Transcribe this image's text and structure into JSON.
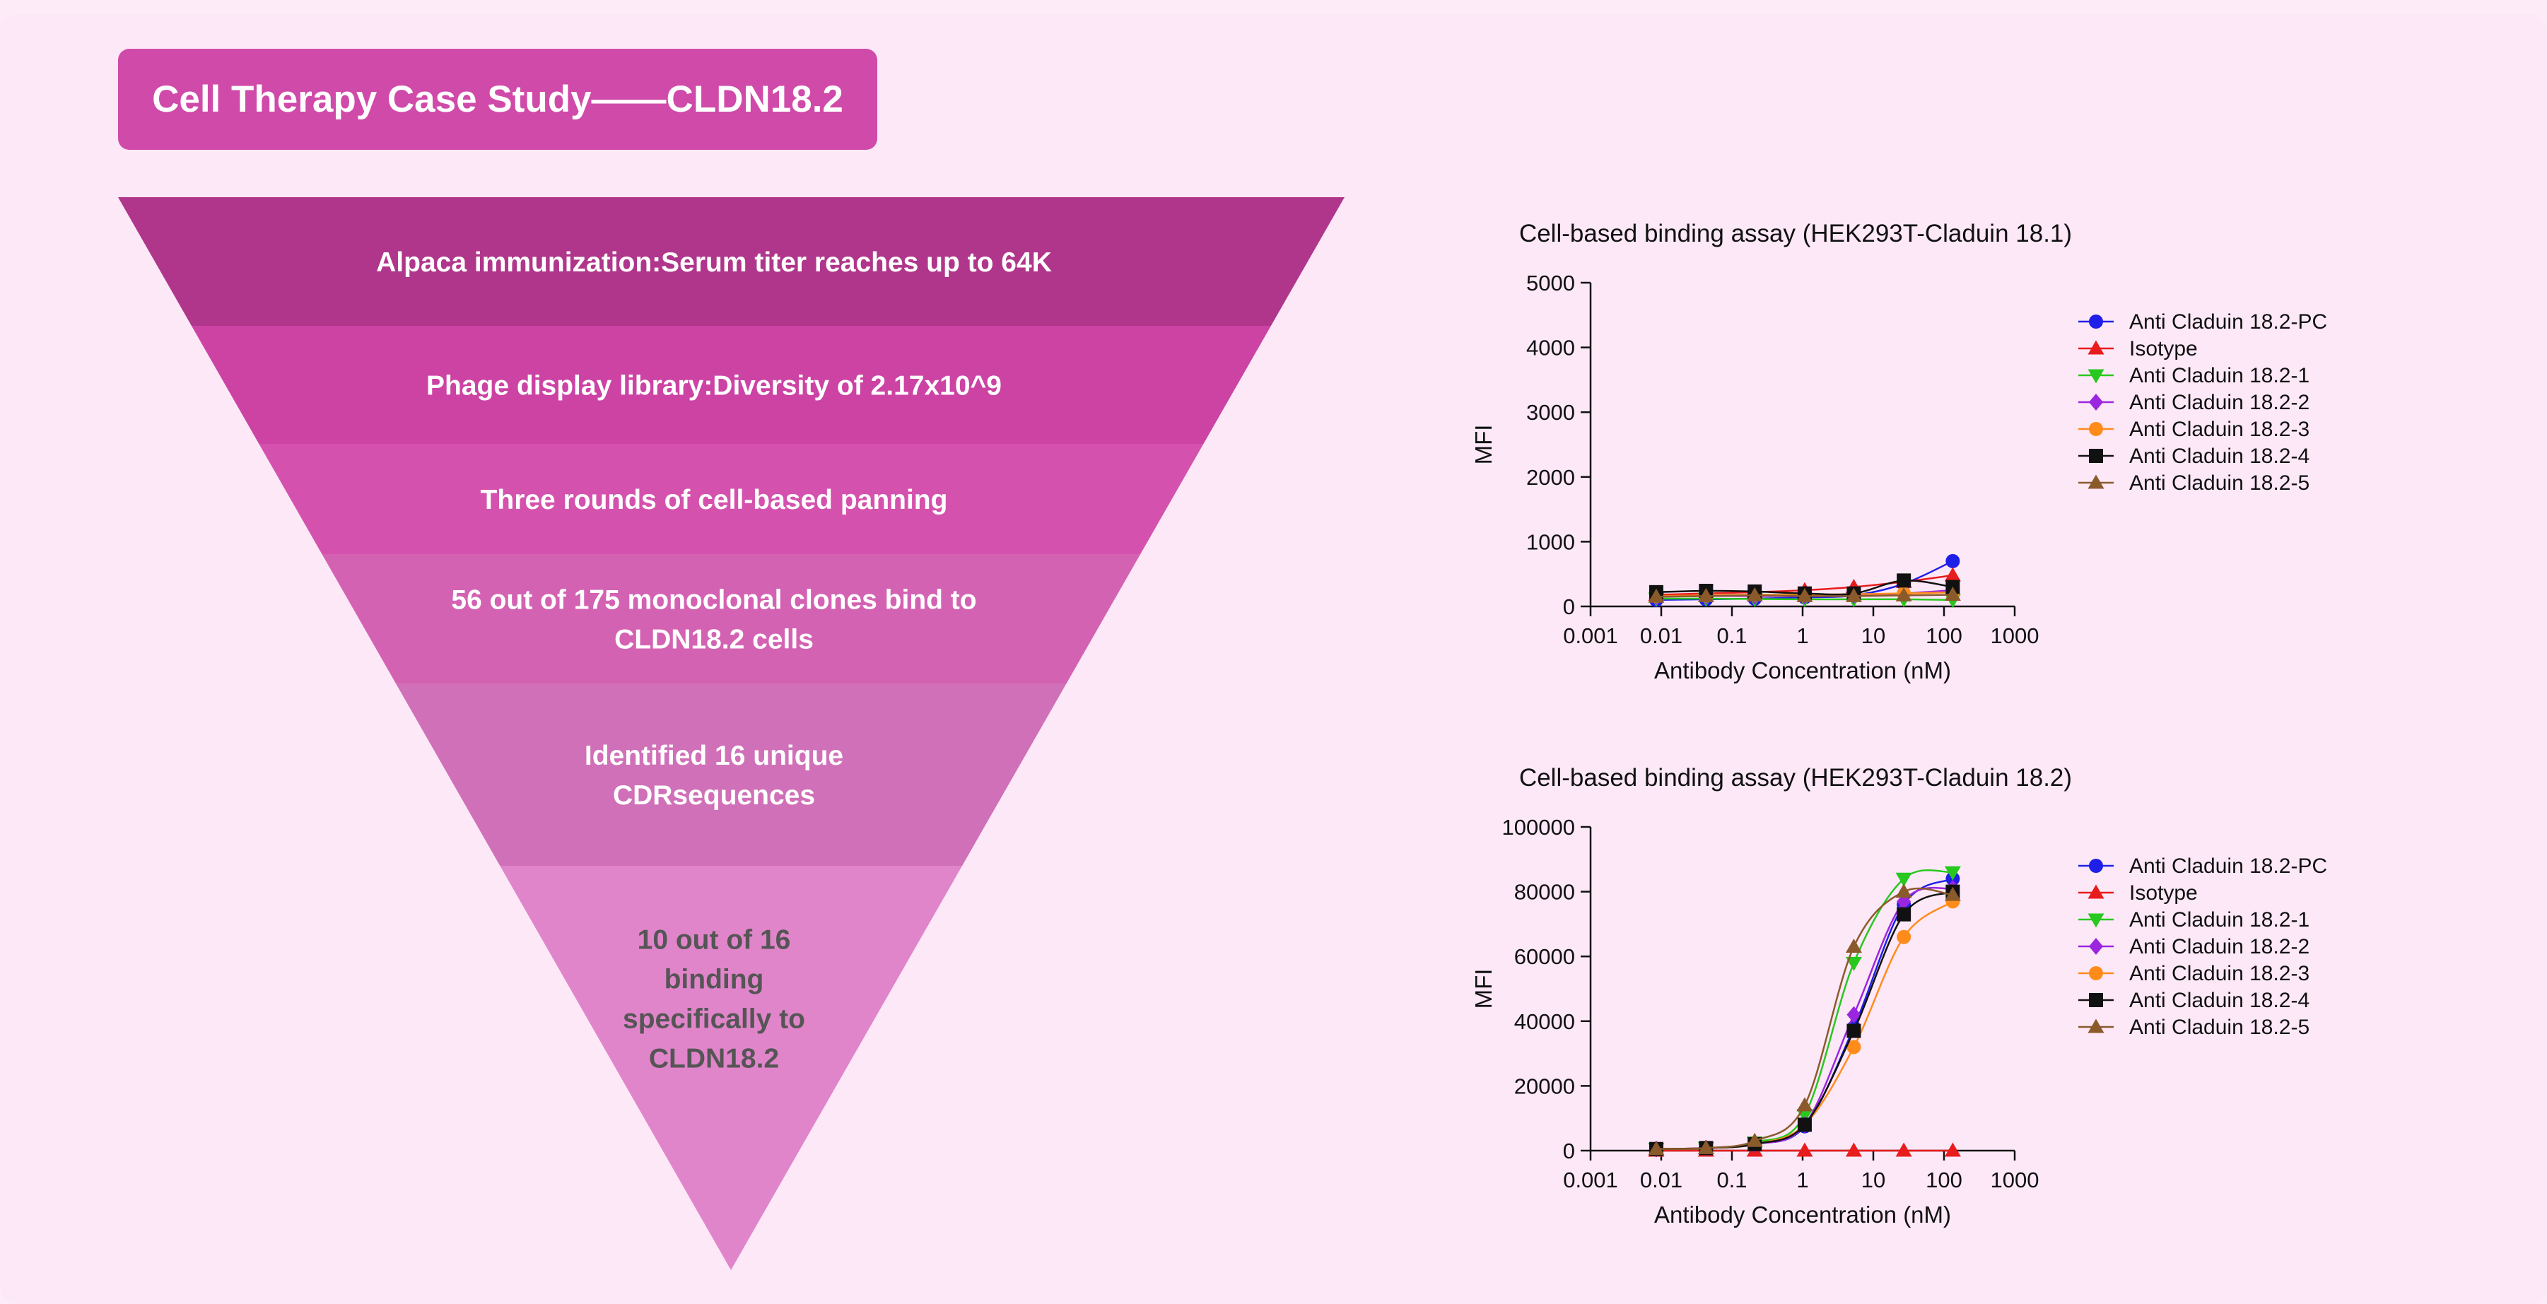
{
  "header": {
    "title": "Cell Therapy Case Study——CLDN18.2"
  },
  "funnel": {
    "steps": [
      {
        "lines": [
          "Alpaca immunization:Serum titer reaches up to 64K"
        ],
        "color": "#b0368b",
        "text_color": "#ffffff"
      },
      {
        "lines": [
          "Phage display library:Diversity of 2.17x10^9"
        ],
        "color": "#cc43a4",
        "text_color": "#ffffff"
      },
      {
        "lines": [
          "Three rounds of cell-based panning"
        ],
        "color": "#d452ad",
        "text_color": "#ffffff"
      },
      {
        "lines": [
          "56 out of 175 monoclonal clones bind to",
          "CLDN18.2 cells"
        ],
        "color": "#d462b3",
        "text_color": "#ffffff"
      },
      {
        "lines": [
          "Identified 16 unique",
          "CDRsequences"
        ],
        "color": "#d070b8",
        "text_color": "#ffffff"
      },
      {
        "lines": [
          "10 out of 16",
          "binding",
          "specifically to",
          "CLDN18.2"
        ],
        "color": "#e185cb",
        "text_color": "#555555"
      }
    ]
  },
  "chart_data": [
    {
      "type": "scatter",
      "title": "Cell-based binding assay (HEK293T-Claduin 18.1)",
      "xlabel": "Antibody Concentration (nM)",
      "ylabel": "MFI",
      "x_scale": "log",
      "xlim": [
        0.001,
        1000
      ],
      "ylim": [
        0,
        5000
      ],
      "xticks": [
        0.001,
        0.01,
        0.1,
        1,
        10,
        100,
        1000
      ],
      "xtick_labels": [
        "0.001",
        "0.01",
        "0.1",
        "1",
        "10",
        "100",
        "1000"
      ],
      "yticks": [
        0,
        1000,
        2000,
        3000,
        4000,
        5000
      ],
      "ytick_labels": [
        "0",
        "1000",
        "2000",
        "3000",
        "4000",
        "5000"
      ],
      "legend_position": "right",
      "x": [
        0.0085,
        0.043,
        0.21,
        1.07,
        5.3,
        27,
        133
      ],
      "series": [
        {
          "name": "Anti Claduin 18.2-PC",
          "color": "#1f1fe8",
          "marker": "circle",
          "values": [
            100,
            110,
            120,
            140,
            170,
            350,
            700
          ]
        },
        {
          "name": "Isotype",
          "color": "#e81c1c",
          "marker": "triangle-up",
          "values": [
            180,
            200,
            220,
            250,
            300,
            380,
            480
          ]
        },
        {
          "name": "Anti Claduin 18.2-1",
          "color": "#28c81e",
          "marker": "triangle-down",
          "values": [
            120,
            120,
            115,
            110,
            110,
            110,
            100
          ]
        },
        {
          "name": "Anti Claduin 18.2-2",
          "color": "#9b26e0",
          "marker": "diamond",
          "values": [
            150,
            160,
            160,
            160,
            170,
            200,
            250
          ]
        },
        {
          "name": "Anti Claduin 18.2-3",
          "color": "#ff8c1a",
          "marker": "circle",
          "values": [
            160,
            170,
            180,
            180,
            190,
            200,
            220
          ]
        },
        {
          "name": "Anti Claduin 18.2-4",
          "color": "#111111",
          "marker": "square",
          "values": [
            220,
            240,
            230,
            200,
            200,
            400,
            300
          ]
        },
        {
          "name": "Anti Claduin 18.2-5",
          "color": "#8b5a2b",
          "marker": "triangle-up",
          "values": [
            150,
            160,
            170,
            160,
            160,
            170,
            180
          ]
        }
      ]
    },
    {
      "type": "scatter",
      "title": "Cell-based binding assay (HEK293T-Claduin 18.2)",
      "xlabel": "Antibody Concentration (nM)",
      "ylabel": "MFI",
      "x_scale": "log",
      "xlim": [
        0.001,
        1000
      ],
      "ylim": [
        0,
        100000
      ],
      "xticks": [
        0.001,
        0.01,
        0.1,
        1,
        10,
        100,
        1000
      ],
      "xtick_labels": [
        "0.001",
        "0.01",
        "0.1",
        "1",
        "10",
        "100",
        "1000"
      ],
      "yticks": [
        0,
        20000,
        40000,
        60000,
        80000,
        100000
      ],
      "ytick_labels": [
        "0",
        "20000",
        "40000",
        "60000",
        "80000",
        "100000"
      ],
      "legend_position": "right",
      "x": [
        0.0085,
        0.043,
        0.21,
        1.07,
        5.3,
        27,
        133
      ],
      "series": [
        {
          "name": "Anti Claduin 18.2-PC",
          "color": "#1f1fe8",
          "marker": "circle",
          "values": [
            500,
            800,
            2000,
            7500,
            38000,
            76000,
            84000
          ]
        },
        {
          "name": "Isotype",
          "color": "#e81c1c",
          "marker": "triangle-up",
          "values": [
            0,
            0,
            0,
            0,
            0,
            0,
            0
          ]
        },
        {
          "name": "Anti Claduin 18.2-1",
          "color": "#28c81e",
          "marker": "triangle-down",
          "values": [
            500,
            800,
            2500,
            11000,
            58000,
            84000,
            86000
          ]
        },
        {
          "name": "Anti Claduin 18.2-2",
          "color": "#9b26e0",
          "marker": "diamond",
          "values": [
            500,
            800,
            2000,
            8000,
            42000,
            77000,
            81000
          ]
        },
        {
          "name": "Anti Claduin 18.2-3",
          "color": "#ff8c1a",
          "marker": "circle",
          "values": [
            500,
            800,
            2000,
            8000,
            32000,
            66000,
            77000
          ]
        },
        {
          "name": "Anti Claduin 18.2-4",
          "color": "#111111",
          "marker": "square",
          "values": [
            500,
            800,
            2000,
            8000,
            37000,
            73000,
            80000
          ]
        },
        {
          "name": "Anti Claduin 18.2-5",
          "color": "#8b5a2b",
          "marker": "triangle-up",
          "values": [
            500,
            800,
            3000,
            14000,
            63000,
            80000,
            79000
          ]
        }
      ]
    }
  ]
}
